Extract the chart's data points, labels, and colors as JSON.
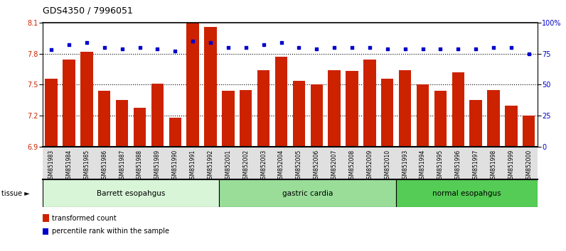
{
  "title": "GDS4350 / 7996051",
  "samples": [
    "GSM851983",
    "GSM851984",
    "GSM851985",
    "GSM851986",
    "GSM851987",
    "GSM851988",
    "GSM851989",
    "GSM851990",
    "GSM851991",
    "GSM851992",
    "GSM852001",
    "GSM852002",
    "GSM852003",
    "GSM852004",
    "GSM852005",
    "GSM852006",
    "GSM852007",
    "GSM852008",
    "GSM852009",
    "GSM852010",
    "GSM851993",
    "GSM851994",
    "GSM851995",
    "GSM851996",
    "GSM851997",
    "GSM851998",
    "GSM851999",
    "GSM852000"
  ],
  "bar_values": [
    7.56,
    7.74,
    7.82,
    7.44,
    7.35,
    7.28,
    7.51,
    7.18,
    8.1,
    8.06,
    7.44,
    7.45,
    7.64,
    7.77,
    7.54,
    7.5,
    7.64,
    7.63,
    7.74,
    7.56,
    7.64,
    7.5,
    7.44,
    7.62,
    7.35,
    7.45,
    7.3,
    7.2
  ],
  "dot_values": [
    78,
    82,
    84,
    80,
    79,
    80,
    79,
    77,
    85,
    84,
    80,
    80,
    82,
    84,
    80,
    79,
    80,
    80,
    80,
    79,
    79,
    79,
    79,
    79,
    79,
    80,
    80,
    75
  ],
  "groups": [
    {
      "label": "Barrett esopahgus",
      "start": 0,
      "end": 10,
      "color": "#d8f5d8"
    },
    {
      "label": "gastric cardia",
      "start": 10,
      "end": 20,
      "color": "#99dd99"
    },
    {
      "label": "normal esopahgus",
      "start": 20,
      "end": 28,
      "color": "#55cc55"
    }
  ],
  "bar_color": "#cc2200",
  "dot_color": "#0000cc",
  "ylim_left": [
    6.9,
    8.1
  ],
  "ylim_right": [
    0,
    100
  ],
  "yticks_left": [
    6.9,
    7.2,
    7.5,
    7.8,
    8.1
  ],
  "yticks_right": [
    0,
    25,
    50,
    75,
    100
  ],
  "ytick_labels_right": [
    "0",
    "25",
    "50",
    "75",
    "100%"
  ],
  "hlines": [
    7.8,
    7.5,
    7.2
  ],
  "background_color": "#ffffff"
}
